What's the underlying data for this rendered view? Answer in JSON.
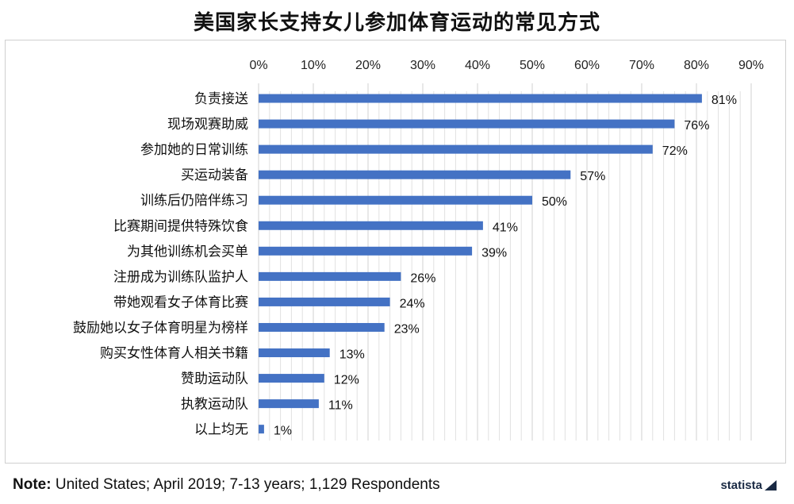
{
  "chart_data": {
    "type": "bar",
    "orientation": "horizontal",
    "title": "美国家长支持女儿参加体育运动的常见方式",
    "categories": [
      "负责接送",
      "现场观赛助威",
      "参加她的日常训练",
      "买运动装备",
      "训练后仍陪伴练习",
      "比赛期间提供特殊饮食",
      "为其他训练机会买单",
      "注册成为训练队监护人",
      "带她观看女子体育比赛",
      "鼓励她以女子体育明星为榜样",
      "购买女性体育人相关书籍",
      "赞助运动队",
      "执教运动队",
      "以上均无"
    ],
    "values": [
      81,
      76,
      72,
      57,
      50,
      41,
      39,
      26,
      24,
      23,
      13,
      12,
      11,
      1
    ],
    "value_labels": [
      "81%",
      "76%",
      "72%",
      "57%",
      "50%",
      "41%",
      "39%",
      "26%",
      "24%",
      "23%",
      "13%",
      "12%",
      "11%",
      "1%"
    ],
    "x_ticks": [
      "0%",
      "10%",
      "20%",
      "30%",
      "40%",
      "50%",
      "60%",
      "70%",
      "80%",
      "90%"
    ],
    "xlim": [
      0,
      90
    ],
    "x_axis_position": "top",
    "grid": "vertical",
    "bar_color": "#4472c4",
    "grid_color": "#d0d0d0"
  },
  "footer": {
    "note_label": "Note:",
    "note_text": " United States; April 2019; 7-13 years; 1,129 Respondents",
    "brand": "statista"
  }
}
